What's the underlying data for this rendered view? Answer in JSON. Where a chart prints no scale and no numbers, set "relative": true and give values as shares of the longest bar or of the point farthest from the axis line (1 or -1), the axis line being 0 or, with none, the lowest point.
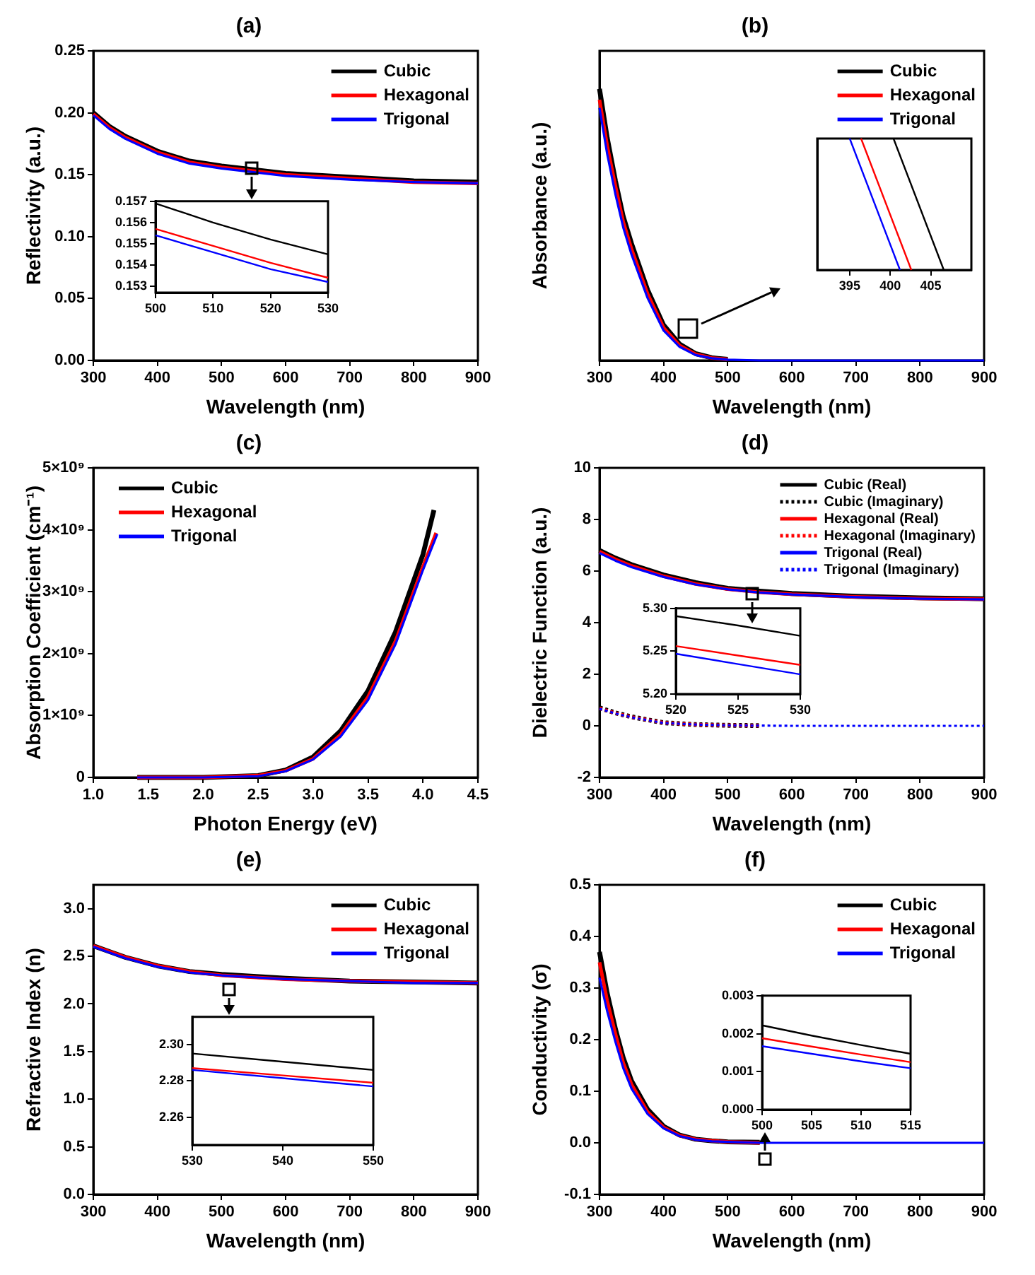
{
  "chart_data": [
    {
      "type": "line",
      "title": "(a)",
      "xlabel": "Wavelength (nm)",
      "ylabel": "Reflectivity (a.u.)",
      "x": [
        300,
        325,
        350,
        400,
        450,
        500,
        550,
        600,
        700,
        800,
        900
      ],
      "xlim": [
        300,
        900
      ],
      "xticks": [
        300,
        400,
        500,
        600,
        700,
        800,
        900
      ],
      "ylim": [
        0,
        0.25
      ],
      "yticks": [
        {
          "value": 0,
          "label": "0.00"
        },
        {
          "value": 0.05,
          "label": "0.05"
        },
        {
          "value": 0.1,
          "label": "0.10"
        },
        {
          "value": 0.15,
          "label": "0.15"
        },
        {
          "value": 0.2,
          "label": "0.20"
        },
        {
          "value": 0.25,
          "label": "0.25"
        }
      ],
      "legend": "top right",
      "series": [
        {
          "name": "Cubic",
          "color": "#000000",
          "values": [
            0.2,
            0.189,
            0.181,
            0.169,
            0.161,
            0.157,
            0.154,
            0.151,
            0.148,
            0.145,
            0.144
          ]
        },
        {
          "name": "Hexagonal",
          "color": "#ff0000",
          "values": [
            0.199,
            0.188,
            0.18,
            0.168,
            0.16,
            0.156,
            0.153,
            0.15,
            0.147,
            0.144,
            0.143
          ]
        },
        {
          "name": "Trigonal",
          "color": "#0000ff",
          "values": [
            0.198,
            0.187,
            0.179,
            0.167,
            0.159,
            0.155,
            0.152,
            0.149,
            0.146,
            0.144,
            0.143
          ]
        }
      ]
    },
    {
      "type": "line",
      "x": [
        500,
        510,
        520,
        530
      ],
      "xlim": [
        500,
        530
      ],
      "xticks": [
        500,
        510,
        520,
        530
      ],
      "ylim": [
        0.1527,
        0.157
      ],
      "yticks": [
        0.153,
        0.154,
        0.155,
        0.156,
        0.157
      ],
      "series": [
        {
          "color": "#000000",
          "values": [
            0.1569,
            0.156,
            0.1552,
            0.1545
          ]
        },
        {
          "color": "#ff0000",
          "values": [
            0.1557,
            0.1549,
            0.1541,
            0.1534
          ]
        },
        {
          "color": "#0000ff",
          "values": [
            0.1554,
            0.1546,
            0.1538,
            0.1532
          ]
        }
      ]
    },
    {
      "type": "line",
      "title": "(b)",
      "xlabel": "Wavelength (nm)",
      "ylabel": "Absorbance (a.u.)",
      "relative": true,
      "tick_labels": "x",
      "x": [
        300,
        312,
        325,
        337,
        350,
        375,
        400,
        425,
        450,
        475,
        500,
        550,
        600,
        700,
        900
      ],
      "xlim": [
        300,
        900
      ],
      "xticks": [
        300,
        400,
        500,
        600,
        700,
        800,
        900
      ],
      "legend": "top right",
      "series": [
        {
          "name": "Cubic",
          "color": "#000000",
          "values": [
            1,
            0.82,
            0.66,
            0.53,
            0.43,
            0.26,
            0.13,
            0.06,
            0.025,
            0.01,
            0.004,
            null,
            null,
            null,
            null
          ]
        },
        {
          "name": "Hexagonal",
          "color": "#ff0000",
          "values": [
            0.96,
            0.79,
            0.64,
            0.51,
            0.41,
            0.245,
            0.12,
            0.055,
            0.023,
            0.009,
            0.004,
            null,
            null,
            null,
            null
          ]
        },
        {
          "name": "Trigonal",
          "color": "#0000ff",
          "values": [
            0.93,
            0.76,
            0.61,
            0.49,
            0.39,
            0.23,
            0.11,
            0.05,
            0.02,
            0.008,
            0.003,
            0,
            0,
            0,
            0
          ]
        }
      ]
    },
    {
      "type": "line",
      "relative": true,
      "tick_labels": "x",
      "xlim": [
        391,
        410
      ],
      "xticks": [
        395,
        400,
        405
      ],
      "series": [
        {
          "color": "#0000ff",
          "x": [
            395.0,
            401.2
          ],
          "values": [
            1,
            0
          ]
        },
        {
          "color": "#ff0000",
          "x": [
            396.4,
            402.6
          ],
          "values": [
            1,
            0
          ]
        },
        {
          "color": "#000000",
          "x": [
            400.4,
            406.6
          ],
          "values": [
            1,
            0
          ]
        }
      ]
    },
    {
      "type": "line",
      "title": "(c)",
      "xlabel": "Photon Energy (eV)",
      "ylabel": "Absorption Coefficient (cm⁻¹)",
      "xlim": [
        1.0,
        4.5
      ],
      "xticks": [
        {
          "value": 1,
          "label": "1.0"
        },
        1.5,
        {
          "value": 2,
          "label": "2.0"
        },
        2.5,
        {
          "value": 3,
          "label": "3.0"
        },
        3.5,
        {
          "value": 4,
          "label": "4.0"
        },
        4.5
      ],
      "ylim": [
        0,
        5000000000
      ],
      "yticks": [
        0,
        {
          "value": 1000000000,
          "label": "1×10⁹"
        },
        {
          "value": 2000000000,
          "label": "2×10⁹"
        },
        {
          "value": 3000000000,
          "label": "3×10⁹"
        },
        {
          "value": 4000000000,
          "label": "4×10⁹"
        },
        {
          "value": 5000000000,
          "label": "5×10⁹"
        }
      ],
      "legend": "top left",
      "series": [
        {
          "name": "Cubic",
          "color": "#000000",
          "x": [
            1.4,
            2.0,
            2.5,
            2.75,
            3.0,
            3.25,
            3.5,
            3.75,
            4.0,
            4.1
          ],
          "values": [
            0,
            0,
            30000000,
            120000000,
            330000000,
            750000000,
            1400000000,
            2350000000,
            3600000000,
            4320000000
          ]
        },
        {
          "name": "Hexagonal",
          "color": "#ff0000",
          "x": [
            1.4,
            2.0,
            2.5,
            2.75,
            3.0,
            3.25,
            3.5,
            3.75,
            4.0,
            4.12
          ],
          "values": [
            0,
            0,
            30000000,
            110000000,
            300000000,
            690000000,
            1300000000,
            2200000000,
            3400000000,
            3950000000
          ]
        },
        {
          "name": "Trigonal",
          "color": "#0000ff",
          "x": [
            1.4,
            2.0,
            2.5,
            2.75,
            3.0,
            3.25,
            3.5,
            3.75,
            4.0,
            4.13
          ],
          "values": [
            0,
            0,
            20000000,
            100000000,
            290000000,
            660000000,
            1250000000,
            2150000000,
            3350000000,
            3930000000
          ]
        }
      ]
    },
    {
      "type": "line",
      "title": "(d)",
      "xlabel": "Wavelength (nm)",
      "ylabel": "Dielectric Function (a.u.)",
      "x": [
        300,
        325,
        350,
        400,
        450,
        500,
        550,
        600,
        700,
        800,
        900
      ],
      "xlim": [
        300,
        900
      ],
      "xticks": [
        300,
        400,
        500,
        600,
        700,
        800,
        900
      ],
      "ylim": [
        -2,
        10
      ],
      "yticks": [
        -2,
        0,
        2,
        4,
        6,
        8,
        10
      ],
      "legend": "top right",
      "series": [
        {
          "name": "Cubic (Real)",
          "color": "#000000",
          "values": [
            6.8,
            6.5,
            6.25,
            5.85,
            5.55,
            5.33,
            5.22,
            5.13,
            5.02,
            4.96,
            4.93
          ]
        },
        {
          "name": "Cubic (Imaginary)",
          "color": "#000000",
          "line_style": "dotted",
          "values": [
            0.7,
            0.5,
            0.35,
            0.12,
            0.05,
            0.02,
            0.01,
            null,
            null,
            null,
            null
          ]
        },
        {
          "name": "Hexagonal (Real)",
          "color": "#ff0000",
          "values": [
            6.75,
            6.45,
            6.2,
            5.8,
            5.5,
            5.3,
            5.18,
            5.1,
            5.0,
            4.94,
            4.91
          ]
        },
        {
          "name": "Hexagonal (Imaginary)",
          "color": "#ff0000",
          "line_style": "dotted",
          "values": [
            0.68,
            0.49,
            0.34,
            0.12,
            0.05,
            0.02,
            0.01,
            null,
            null,
            null,
            null
          ]
        },
        {
          "name": "Trigonal (Real)",
          "color": "#0000ff",
          "values": [
            6.7,
            6.4,
            6.15,
            5.77,
            5.48,
            5.29,
            5.17,
            5.09,
            4.99,
            4.93,
            4.9
          ]
        },
        {
          "name": "Trigonal (Imaginary)",
          "color": "#0000ff",
          "line_style": "dotted",
          "values": [
            0.66,
            0.48,
            0.33,
            0.11,
            0.05,
            0.02,
            0.01,
            0,
            0,
            0,
            0
          ]
        }
      ]
    },
    {
      "type": "line",
      "x": [
        520,
        525,
        530
      ],
      "xlim": [
        520,
        530
      ],
      "xticks": [
        520,
        525,
        530
      ],
      "ylim": [
        5.2,
        5.3
      ],
      "yticks": [
        {
          "value": 5.2,
          "label": "5.20"
        },
        5.25,
        {
          "value": 5.3,
          "label": "5.30"
        }
      ],
      "series": [
        {
          "color": "#000000",
          "values": [
            5.291,
            5.28,
            5.268
          ]
        },
        {
          "color": "#ff0000",
          "values": [
            5.256,
            5.245,
            5.234
          ]
        },
        {
          "color": "#0000ff",
          "values": [
            5.247,
            5.235,
            5.223
          ]
        }
      ]
    },
    {
      "type": "line",
      "title": "(e)",
      "xlabel": "Wavelength (nm)",
      "ylabel": "Refractive Index (n)",
      "x": [
        300,
        325,
        350,
        400,
        450,
        500,
        550,
        600,
        700,
        800,
        900
      ],
      "xlim": [
        300,
        900
      ],
      "xticks": [
        300,
        400,
        500,
        600,
        700,
        800,
        900
      ],
      "ylim": [
        0,
        3.25
      ],
      "yticks": [
        {
          "value": 0,
          "label": "0.0"
        },
        0.5,
        {
          "value": 1,
          "label": "1.0"
        },
        1.5,
        {
          "value": 2,
          "label": "2.0"
        },
        2.5,
        {
          "value": 3,
          "label": "3.0"
        }
      ],
      "legend": "top right",
      "series": [
        {
          "name": "Cubic",
          "color": "#000000",
          "values": [
            2.61,
            2.55,
            2.49,
            2.4,
            2.34,
            2.31,
            2.29,
            2.27,
            2.24,
            2.23,
            2.22
          ]
        },
        {
          "name": "Hexagonal",
          "color": "#ff0000",
          "values": [
            2.61,
            2.55,
            2.49,
            2.4,
            2.34,
            2.3,
            2.28,
            2.26,
            2.24,
            2.23,
            2.22
          ]
        },
        {
          "name": "Trigonal",
          "color": "#0000ff",
          "values": [
            2.6,
            2.54,
            2.48,
            2.39,
            2.33,
            2.3,
            2.28,
            2.26,
            2.24,
            2.22,
            2.22
          ]
        }
      ]
    },
    {
      "type": "line",
      "x": [
        530,
        540,
        550
      ],
      "xlim": [
        530,
        550
      ],
      "xticks": [
        530,
        540,
        550
      ],
      "ylim": [
        2.245,
        2.315
      ],
      "yticks": [
        2.26,
        2.28,
        {
          "value": 2.3,
          "label": "2.30"
        }
      ],
      "series": [
        {
          "color": "#000000",
          "values": [
            2.295,
            2.2905,
            2.286
          ]
        },
        {
          "color": "#ff0000",
          "values": [
            2.287,
            2.283,
            2.279
          ]
        },
        {
          "color": "#0000ff",
          "values": [
            2.286,
            2.2815,
            2.277
          ]
        }
      ]
    },
    {
      "type": "line",
      "title": "(f)",
      "xlabel": "Wavelength (nm)",
      "ylabel": "Conductivity (σ)",
      "x": [
        300,
        312,
        325,
        337,
        350,
        375,
        400,
        425,
        450,
        475,
        500,
        550,
        600,
        700,
        900
      ],
      "xlim": [
        300,
        900
      ],
      "xticks": [
        300,
        400,
        500,
        600,
        700,
        800,
        900
      ],
      "ylim": [
        -0.1,
        0.5
      ],
      "yticks": [
        -0.1,
        {
          "value": 0,
          "label": "0.0"
        },
        0.1,
        0.2,
        0.3,
        0.4,
        0.5
      ],
      "legend": "top right",
      "series": [
        {
          "name": "Cubic",
          "color": "#000000",
          "values": [
            0.37,
            0.29,
            0.22,
            0.165,
            0.12,
            0.065,
            0.032,
            0.015,
            0.007,
            0.004,
            0.002,
            0.001,
            null,
            null,
            null
          ]
        },
        {
          "name": "Hexagonal",
          "color": "#ff0000",
          "values": [
            0.35,
            0.275,
            0.21,
            0.155,
            0.113,
            0.06,
            0.03,
            0.014,
            0.007,
            0.004,
            0.002,
            0,
            null,
            null,
            null
          ]
        },
        {
          "name": "Trigonal",
          "color": "#0000ff",
          "values": [
            0.32,
            0.255,
            0.195,
            0.145,
            0.105,
            0.056,
            0.028,
            0.013,
            0.006,
            0.003,
            0.002,
            0,
            0,
            0,
            0
          ]
        }
      ]
    },
    {
      "type": "line",
      "x": [
        500,
        505,
        510,
        515
      ],
      "xlim": [
        500,
        515
      ],
      "xticks": [
        500,
        505,
        510,
        515
      ],
      "ylim": [
        0,
        0.003
      ],
      "yticks": [
        {
          "value": 0,
          "label": "0.000"
        },
        {
          "value": 0.001,
          "label": "0.001"
        },
        {
          "value": 0.002,
          "label": "0.002"
        },
        {
          "value": 0.003,
          "label": "0.003"
        }
      ],
      "series": [
        {
          "color": "#000000",
          "values": [
            0.00222,
            0.00195,
            0.0017,
            0.00147
          ]
        },
        {
          "color": "#ff0000",
          "values": [
            0.00188,
            0.00166,
            0.00145,
            0.00125
          ]
        },
        {
          "color": "#0000ff",
          "values": [
            0.00167,
            0.00147,
            0.00127,
            0.00109
          ]
        }
      ]
    }
  ]
}
